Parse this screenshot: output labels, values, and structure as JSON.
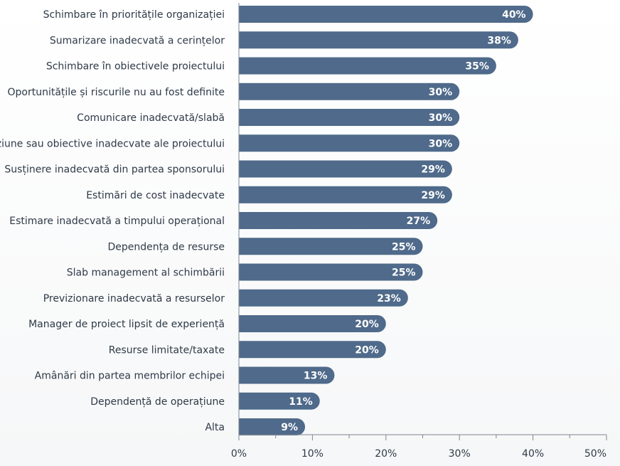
{
  "chart_data": {
    "type": "bar",
    "orientation": "horizontal",
    "categories": [
      "Schimbare în prioritățile organizației",
      "Sumarizare inadecvată a cerințelor",
      "Schimbare în obiectivele proiectului",
      "Oportunitățile și riscurile nu au fost definite",
      "Comunicare inadecvată/slabă",
      "Viziune sau obiective inadecvate ale proiectului",
      "Susținere inadecvată din partea sponsorului",
      "Estimări de cost inadecvate",
      "Estimare inadecvată a timpului operațional",
      "Dependența de resurse",
      "Slab management al schimbării",
      "Previzionare inadecvată a resurselor",
      "Manager de proiect lipsit de experiență",
      "Resurse limitate/taxate",
      "Amânări din partea membrilor echipei",
      "Dependență de operațiune",
      "Alta"
    ],
    "values": [
      40,
      38,
      35,
      30,
      30,
      30,
      29,
      29,
      27,
      25,
      25,
      23,
      20,
      20,
      13,
      11,
      9
    ],
    "value_labels": [
      "40%",
      "38%",
      "35%",
      "30%",
      "30%",
      "30%",
      "29%",
      "29%",
      "27%",
      "25%",
      "25%",
      "23%",
      "20%",
      "20%",
      "13%",
      "11%",
      "9%"
    ],
    "xlim": [
      0,
      50
    ],
    "x_ticks": [
      0,
      10,
      20,
      30,
      40,
      50
    ],
    "x_tick_labels": [
      "0%",
      "10%",
      "20%",
      "30%",
      "40%",
      "50%"
    ],
    "title": "",
    "xlabel": "",
    "ylabel": "",
    "grid": false,
    "legend": "none",
    "colors": {
      "bar": "#4f6a8a",
      "axis": "#7d8793",
      "text": "#2e3a48",
      "value_text": "#ffffff"
    }
  }
}
